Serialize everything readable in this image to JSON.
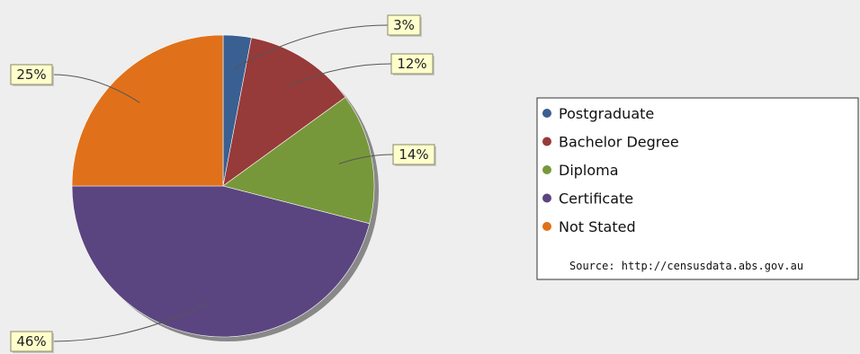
{
  "chart_data": {
    "type": "pie",
    "categories": [
      "Postgraduate",
      "Bachelor Degree",
      "Diploma",
      "Certificate",
      "Not Stated"
    ],
    "values": [
      3,
      12,
      14,
      46,
      25
    ],
    "value_labels": [
      "3%",
      "12%",
      "14%",
      "46%",
      "25%"
    ],
    "colors": [
      "#3a5f91",
      "#973a3a",
      "#77983a",
      "#5b4580",
      "#e0711a"
    ],
    "title": "",
    "legend_position": "right",
    "legend_note": "Source: http://censusdata.abs.gov.au"
  }
}
